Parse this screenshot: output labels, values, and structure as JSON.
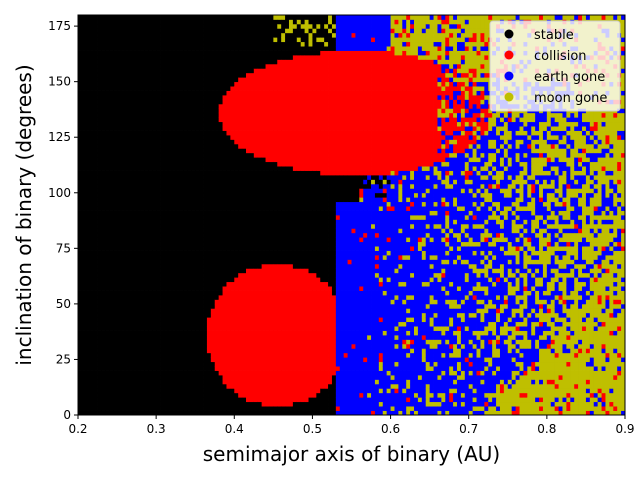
{
  "chart_data": {
    "type": "heatmap",
    "title": "",
    "xlabel": "semimajor axis of binary (AU)",
    "ylabel": "inclination of binary (degrees)",
    "xlim": [
      0.2,
      0.9
    ],
    "ylim": [
      0,
      180
    ],
    "xticks": [
      0.2,
      0.3,
      0.4,
      0.5,
      0.6,
      0.7,
      0.8,
      0.9
    ],
    "xtick_labels": [
      "0.2",
      "0.3",
      "0.4",
      "0.5",
      "0.6",
      "0.7",
      "0.8",
      "0.9"
    ],
    "yticks": [
      0,
      25,
      50,
      75,
      100,
      125,
      150,
      175
    ],
    "ytick_labels": [
      "0",
      "25",
      "50",
      "75",
      "100",
      "125",
      "150",
      "175"
    ],
    "grid": false,
    "legend_position": "top-right",
    "grid_resolution": {
      "a_step": 0.005,
      "inclination_step": 2
    },
    "categories": [
      {
        "key": "stable",
        "name": "stable",
        "color": "#000000"
      },
      {
        "key": "collision",
        "name": "collision",
        "color": "#ff0000"
      },
      {
        "key": "earth_gone",
        "name": "earth gone",
        "color": "#0000ff"
      },
      {
        "key": "moon_gone",
        "name": "moon gone",
        "color": "#bfbf00"
      }
    ],
    "regions": [
      {
        "outcome": "collision",
        "shape": "ellipse",
        "center_a": 0.46,
        "center_inc": 37,
        "radius_a": 0.09,
        "radius_inc": 30,
        "a_max": 0.53,
        "description": "lower collision lobe"
      },
      {
        "outcome": "collision",
        "shape": "ellipse",
        "center_a": 0.55,
        "center_inc": 135,
        "radius_a": 0.17,
        "radius_inc": 28,
        "description": "upper collision lobe"
      },
      {
        "outcome": "earth_gone",
        "shape": "region",
        "a_min": 0.53,
        "inc_min": 0,
        "inc_max": 180,
        "description": "chaotic mixed band beyond 0.53 AU"
      },
      {
        "outcome": "moon_gone",
        "shape": "region",
        "a_min": 0.7,
        "inc_min": 0,
        "inc_max": 180,
        "description": "dominant at large separations"
      }
    ]
  }
}
